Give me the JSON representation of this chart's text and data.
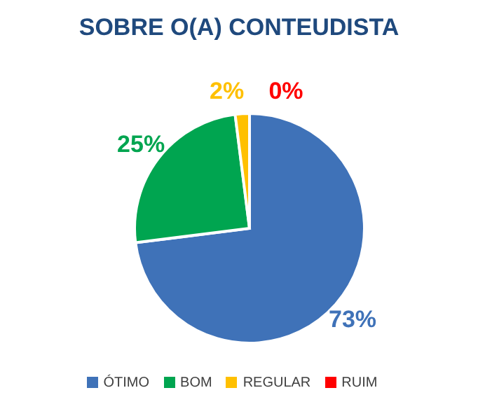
{
  "chart_data": {
    "type": "pie",
    "title": "SOBRE O(A) CONTEUDISTA",
    "categories": [
      "ÓTIMO",
      "BOM",
      "REGULAR",
      "RUIM"
    ],
    "values": [
      73,
      25,
      2,
      0
    ],
    "colors": [
      "#3f72b8",
      "#00a550",
      "#ffc000",
      "#ff0000"
    ],
    "value_labels": [
      "73%",
      "25%",
      "2%",
      "0%"
    ],
    "legend": "bottom"
  }
}
